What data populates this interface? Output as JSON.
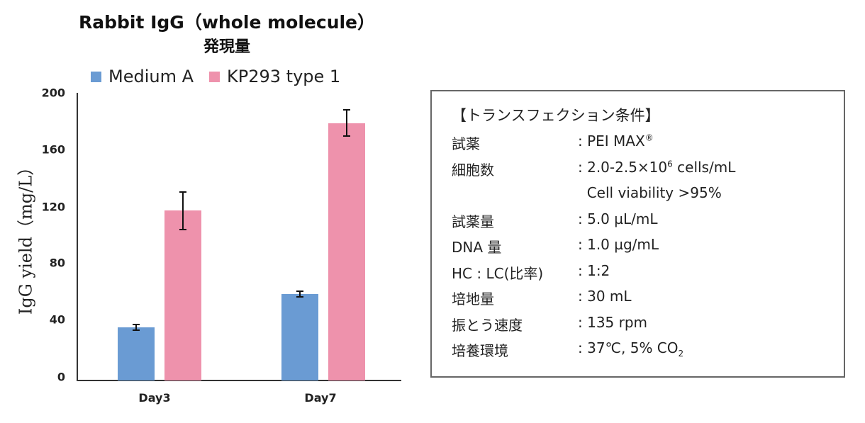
{
  "chart_data": {
    "type": "bar",
    "title": "Rabbit IgG（whole molecule）",
    "subtitle": "発現量",
    "xlabel": "",
    "ylabel": "IgG yield（mg/L）",
    "ylim": [
      0,
      200
    ],
    "yticks": [
      "0",
      "40",
      "80",
      "120",
      "160",
      "200"
    ],
    "categories": [
      "Day3",
      "Day7"
    ],
    "legend_position": "top",
    "grid": false,
    "series": [
      {
        "name": "Medium A",
        "color": "#6a9bd3",
        "values": [
          37,
          60
        ],
        "error": [
          2,
          2
        ]
      },
      {
        "name": "KP293 type 1",
        "color": "#ee92ac",
        "values": [
          118,
          179
        ],
        "error": [
          13,
          9
        ]
      }
    ]
  },
  "chart": {
    "title_line1": "Rabbit IgG（whole molecule）",
    "title_line2": "発現量",
    "legend": [
      {
        "label": "Medium A",
        "color": "#6a9bd3"
      },
      {
        "label": "KP293 type 1",
        "color": "#ee92ac"
      }
    ],
    "ylabel": "IgG yield（mg/L）",
    "yticks": [
      "200",
      "160",
      "120",
      "80",
      "40",
      "0"
    ],
    "xticks": [
      "Day3",
      "Day7"
    ]
  },
  "conditions": {
    "title": "【トランスフェクション条件】",
    "rows": [
      {
        "key": "試薬",
        "value": ": PEI MAX",
        "sup": "®"
      },
      {
        "key": "細胞数",
        "value": ": 2.0-2.5×10",
        "sup": "6",
        "value_tail": " cells/mL"
      },
      {
        "key": "",
        "value": "  Cell viability >95%"
      },
      {
        "key": "試薬量",
        "value": ": 5.0 µL/mL"
      },
      {
        "key": "DNA 量",
        "value": ": 1.0 µg/mL"
      },
      {
        "key": "HC : LC(比率)",
        "value": ": 1:2"
      },
      {
        "key": "培地量",
        "value": ": 30 mL"
      },
      {
        "key": "振とう速度",
        "value": ": 135 rpm"
      },
      {
        "key": "培養環境",
        "value": ": 37℃, 5% CO",
        "sub": "2"
      }
    ]
  }
}
